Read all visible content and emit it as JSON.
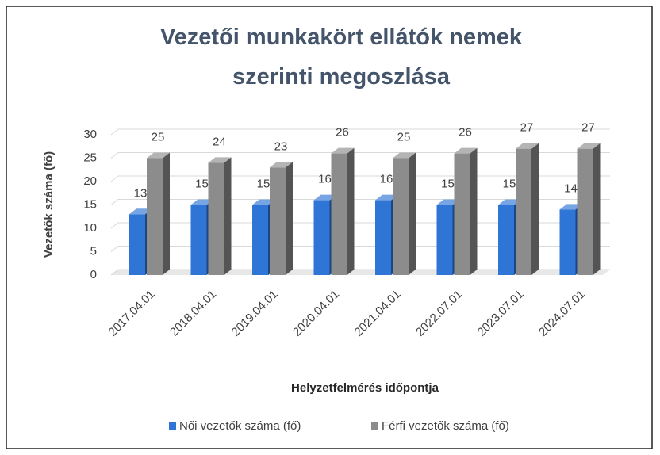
{
  "chart_data": {
    "type": "bar3d",
    "title": "Vezetői munkakört ellátók nemek szerinti megoszlása",
    "xlabel": "Helyzetfelmérés időpontja",
    "ylabel": "Vezetők száma (fő)",
    "categories": [
      "2017.04.01",
      "2018.04.01",
      "2019.04.01",
      "2020.04.01",
      "2021.04.01",
      "2022.07.01",
      "2023.07.01",
      "2024.07.01"
    ],
    "series": [
      {
        "name": "Női vezetők száma (fő)",
        "color": "#2e75d6",
        "values": [
          13,
          15,
          15,
          16,
          16,
          15,
          15,
          14
        ]
      },
      {
        "name": "Férfi vezetők száma (fő)",
        "color": "#8c8c8c",
        "values": [
          25,
          24,
          23,
          26,
          25,
          26,
          27,
          27
        ]
      }
    ],
    "ylim": [
      0,
      30
    ],
    "yticks": [
      0,
      5,
      10,
      15,
      20,
      25,
      30
    ],
    "grid": true,
    "legend": "bottom"
  }
}
